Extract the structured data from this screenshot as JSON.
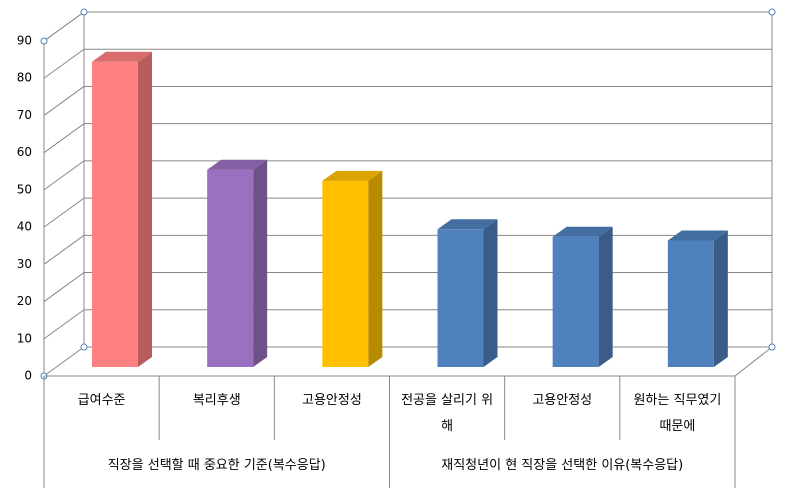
{
  "chart_data": {
    "type": "bar3d",
    "categories": [
      "급여수준",
      "복리후생",
      "고용안정성",
      "전공을 살리기 위해",
      "고용안정성",
      "원하는 직무였기 때문에"
    ],
    "groups": [
      {
        "label": "직장을 선택할 때 중요한 기준(복수응답)",
        "span": 3
      },
      {
        "label": "재직청년이 현 직장을 선택한 이유(복수응답)",
        "span": 3
      }
    ],
    "values": [
      82,
      53,
      50,
      37,
      35,
      34
    ],
    "colors": [
      "#ff8080",
      "#9a70c0",
      "#ffc000",
      "#4f81bd",
      "#4f81bd",
      "#4f81bd"
    ],
    "ylim": [
      0,
      90
    ],
    "yticks": [
      0,
      10,
      20,
      30,
      40,
      50,
      60,
      70,
      80,
      90
    ],
    "grid": true
  }
}
